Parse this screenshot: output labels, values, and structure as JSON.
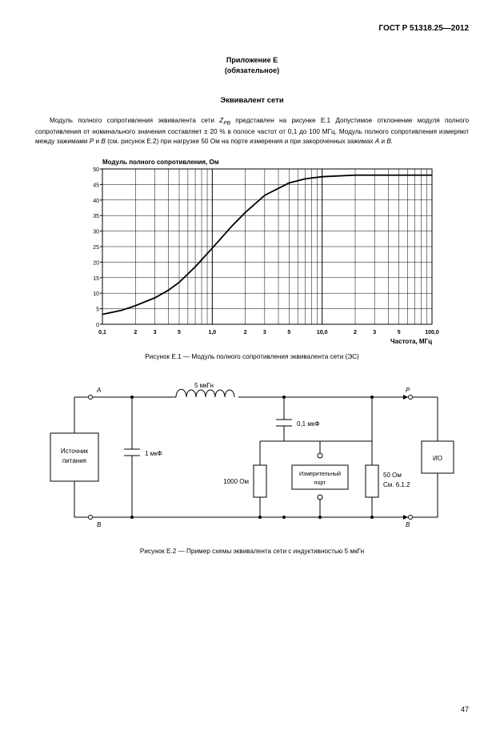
{
  "header": "ГОСТ Р 51318.25—2012",
  "appendix_line1": "Приложение Е",
  "appendix_line2": "(обязательное)",
  "title": "Эквивалент сети",
  "paragraph_pre": "Модуль полного сопротивления эквивалента сети ",
  "paragraph_zpb_prefix": "Z",
  "paragraph_zpb_sub": "PB",
  "paragraph_rest": "  представлен на рисунке Е.1 Допустимое отклонение модуля полного сопротивления от номинального значения составляет ± 20 % в полосе частот от 0,1 до 100 МГц. Модуль полного сопротивления измеряют между зажимами ",
  "paragraph_P": "P",
  "paragraph_and1": " и ",
  "paragraph_B1": "B",
  "paragraph_mid2": " (см. рисунок Е.2) при нагрузке 50 Ом на порте измерения и при закороченных зажимах ",
  "paragraph_A": "A",
  "paragraph_and2": " и ",
  "paragraph_B2": "B.",
  "chart": {
    "y_label": "Модуль полного сопротивления, Ом",
    "x_label": "Частота, МГц",
    "y_ticks": [
      0,
      5,
      10,
      15,
      20,
      25,
      30,
      35,
      40,
      45,
      50
    ],
    "x_decades": [
      0.1,
      1.0,
      10.0,
      100.0
    ],
    "x_tick_labels": [
      "0,1",
      "2",
      "3",
      "5",
      "1,0",
      "2",
      "3",
      "5",
      "10,0",
      "2",
      "3",
      "5",
      "100,0"
    ],
    "curve": [
      {
        "x": 0.1,
        "y": 3.2
      },
      {
        "x": 0.15,
        "y": 4.5
      },
      {
        "x": 0.2,
        "y": 6.0
      },
      {
        "x": 0.3,
        "y": 8.5
      },
      {
        "x": 0.4,
        "y": 11.0
      },
      {
        "x": 0.5,
        "y": 13.5
      },
      {
        "x": 0.7,
        "y": 18.5
      },
      {
        "x": 1.0,
        "y": 24.5
      },
      {
        "x": 1.5,
        "y": 31.5
      },
      {
        "x": 2.0,
        "y": 36.0
      },
      {
        "x": 3.0,
        "y": 41.5
      },
      {
        "x": 5.0,
        "y": 45.5
      },
      {
        "x": 7.0,
        "y": 46.8
      },
      {
        "x": 10.0,
        "y": 47.5
      },
      {
        "x": 20.0,
        "y": 48.0
      },
      {
        "x": 50.0,
        "y": 48.0
      },
      {
        "x": 100.0,
        "y": 48.0
      }
    ],
    "colors": {
      "axis": "#000000",
      "grid": "#000000",
      "curve": "#000000",
      "bg": "#ffffff",
      "text": "#000000"
    },
    "line_width_curve": 1.8,
    "line_width_grid": 0.5,
    "axis_fontsize": 8,
    "tick_fontsize": 7
  },
  "caption1": "Рисунок Е.1 — Модуль полного сопротивления эквивалента сети (ЭС)",
  "circuit": {
    "labels": {
      "A": "A",
      "B": "B",
      "P": "P",
      "B2": "B",
      "source": "Источник\nпитания",
      "IO": "ИО",
      "L": "5 мкГн",
      "C1": "1 мкФ",
      "C2": "0,1 мкФ",
      "R1": "1000 Ом",
      "port": "Измерительный\nпорт",
      "R2_a": "50 Ом",
      "R2_b": "См. 6.1.2"
    },
    "colors": {
      "stroke": "#000000",
      "fill": "#ffffff",
      "text": "#000000"
    },
    "stroke_width": 1.0,
    "fontsize": 8
  },
  "caption2": "Рисунок Е.2 — Пример схемы эквивалента сети с индуктивностью 5 мкГн",
  "page_number": "47"
}
